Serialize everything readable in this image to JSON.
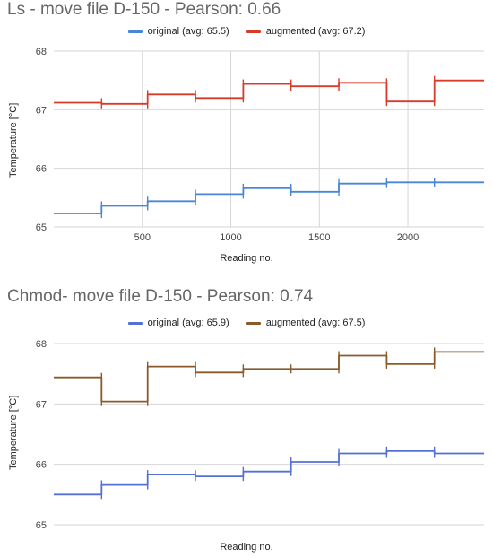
{
  "chart_data": [
    {
      "type": "line",
      "title": "Ls - move file D-150 - Pearson: 0.66",
      "xlabel": "Reading no.",
      "ylabel": "Temperature [°C]",
      "xlim": [
        0,
        2430
      ],
      "ylim": [
        65,
        68
      ],
      "xticks": [
        500,
        1000,
        1500,
        2000
      ],
      "yticks": [
        65,
        66,
        67,
        68
      ],
      "x_grid": true,
      "legend_position": "top-center",
      "series": [
        {
          "name": "original (avg: 65.5)",
          "color": "#4a86d8",
          "points": [
            [
              0,
              65.23
            ],
            [
              270,
              65.23
            ],
            [
              270,
              65.36
            ],
            [
              530,
              65.36
            ],
            [
              530,
              65.44
            ],
            [
              800,
              65.44
            ],
            [
              800,
              65.56
            ],
            [
              1070,
              65.56
            ],
            [
              1070,
              65.66
            ],
            [
              1340,
              65.66
            ],
            [
              1340,
              65.6
            ],
            [
              1610,
              65.6
            ],
            [
              1610,
              65.74
            ],
            [
              1880,
              65.74
            ],
            [
              1880,
              65.76
            ],
            [
              2150,
              65.76
            ],
            [
              2150,
              65.76
            ],
            [
              2430,
              65.76
            ]
          ]
        },
        {
          "name": "augmented (avg: 67.2)",
          "color": "#d93b2b",
          "points": [
            [
              0,
              67.12
            ],
            [
              270,
              67.12
            ],
            [
              270,
              67.1
            ],
            [
              530,
              67.1
            ],
            [
              530,
              67.26
            ],
            [
              800,
              67.26
            ],
            [
              800,
              67.2
            ],
            [
              1070,
              67.2
            ],
            [
              1070,
              67.44
            ],
            [
              1340,
              67.44
            ],
            [
              1340,
              67.4
            ],
            [
              1610,
              67.4
            ],
            [
              1610,
              67.46
            ],
            [
              1880,
              67.46
            ],
            [
              1880,
              67.14
            ],
            [
              2150,
              67.14
            ],
            [
              2150,
              67.5
            ],
            [
              2430,
              67.5
            ]
          ]
        }
      ]
    },
    {
      "type": "line",
      "title": "Chmod- move file D-150 - Pearson: 0.74",
      "xlabel": "Reading no.",
      "ylabel": "Temperature [°C]",
      "xlim": [
        0,
        2430
      ],
      "ylim": [
        65,
        68
      ],
      "yticks": [
        65,
        66,
        67,
        68
      ],
      "x_grid": false,
      "legend_position": "top-center",
      "series": [
        {
          "name": "original (avg: 65.9)",
          "color": "#5470d6",
          "points": [
            [
              0,
              65.5
            ],
            [
              270,
              65.5
            ],
            [
              270,
              65.66
            ],
            [
              530,
              65.66
            ],
            [
              530,
              65.83
            ],
            [
              800,
              65.83
            ],
            [
              800,
              65.8
            ],
            [
              1070,
              65.8
            ],
            [
              1070,
              65.88
            ],
            [
              1340,
              65.88
            ],
            [
              1340,
              66.04
            ],
            [
              1610,
              66.04
            ],
            [
              1610,
              66.18
            ],
            [
              1880,
              66.18
            ],
            [
              1880,
              66.22
            ],
            [
              2150,
              66.22
            ],
            [
              2150,
              66.18
            ],
            [
              2430,
              66.18
            ]
          ]
        },
        {
          "name": "augmented (avg: 67.5)",
          "color": "#8b5a2b",
          "points": [
            [
              0,
              67.44
            ],
            [
              270,
              67.44
            ],
            [
              270,
              67.04
            ],
            [
              530,
              67.04
            ],
            [
              530,
              67.62
            ],
            [
              800,
              67.62
            ],
            [
              800,
              67.52
            ],
            [
              1070,
              67.52
            ],
            [
              1070,
              67.58
            ],
            [
              1340,
              67.58
            ],
            [
              1340,
              67.58
            ],
            [
              1610,
              67.58
            ],
            [
              1610,
              67.8
            ],
            [
              1880,
              67.8
            ],
            [
              1880,
              67.66
            ],
            [
              2150,
              67.66
            ],
            [
              2150,
              67.86
            ],
            [
              2430,
              67.86
            ]
          ]
        }
      ]
    }
  ]
}
